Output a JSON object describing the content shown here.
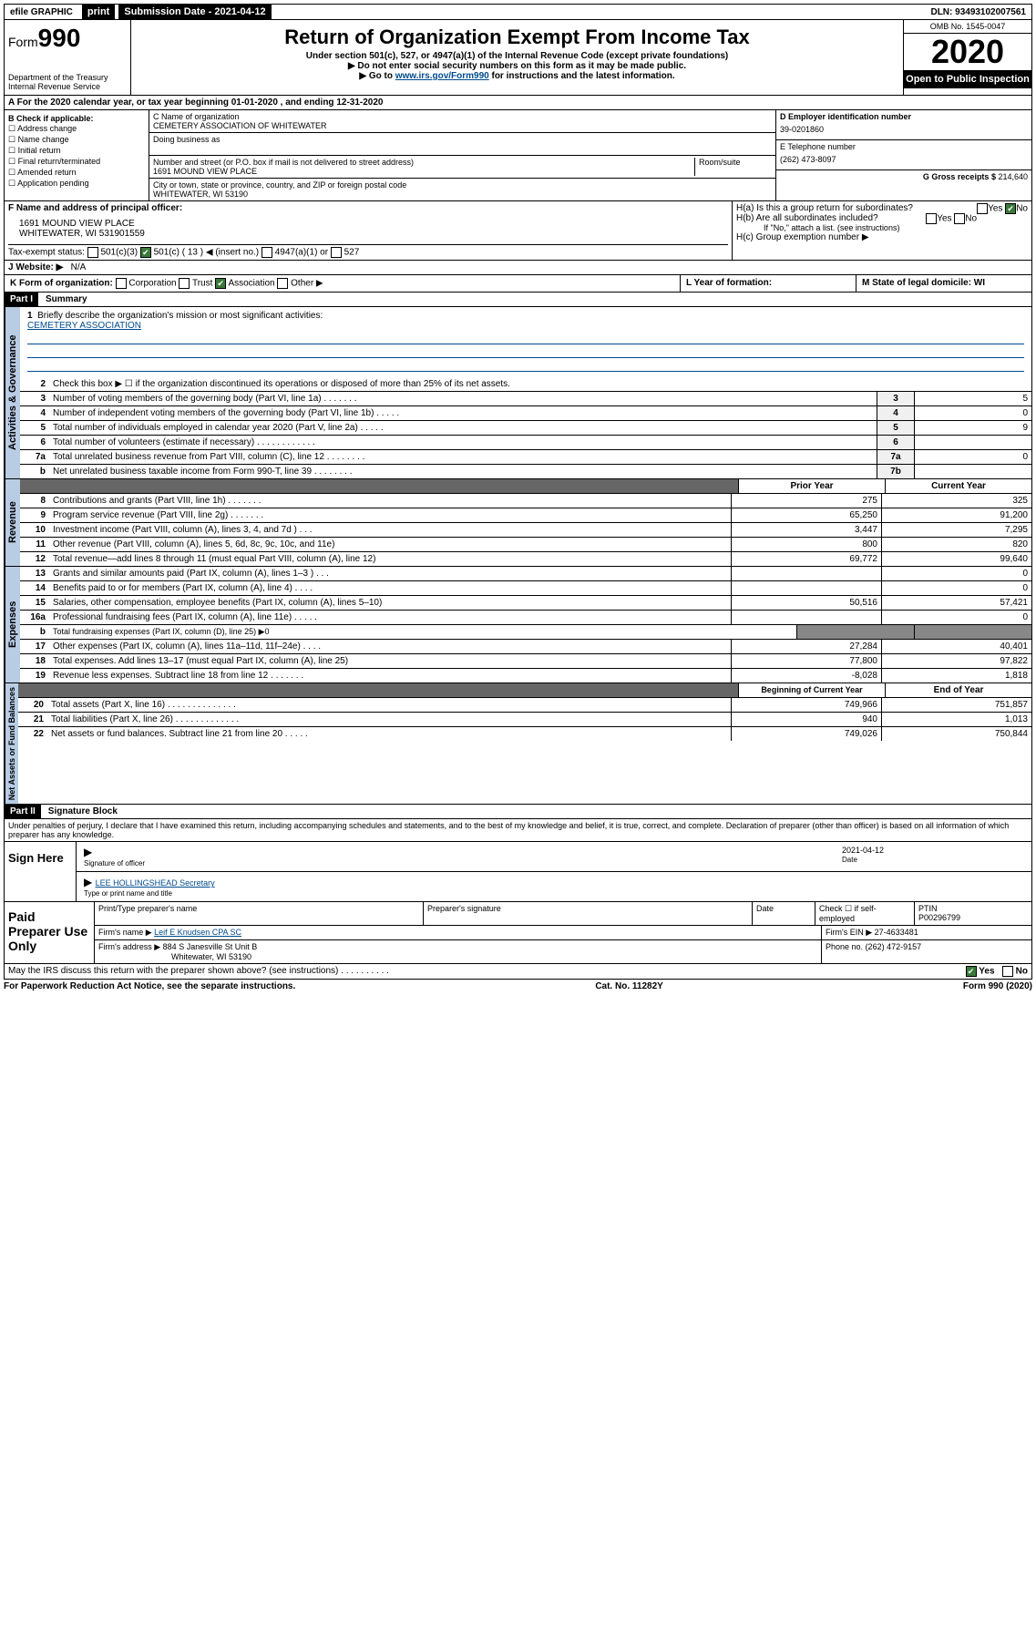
{
  "topbar": {
    "efile": "efile GRAPHIC",
    "print": "print",
    "subdate_label": "Submission Date - 2021-04-12",
    "dln": "DLN: 93493102007561"
  },
  "header": {
    "form_prefix": "Form",
    "form_number": "990",
    "dept1": "Department of the Treasury",
    "dept2": "Internal Revenue Service",
    "title": "Return of Organization Exempt From Income Tax",
    "subtitle": "Under section 501(c), 527, or 4947(a)(1) of the Internal Revenue Code (except private foundations)",
    "note1": "▶ Do not enter social security numbers on this form as it may be made public.",
    "note2_pre": "▶ Go to ",
    "note2_link": "www.irs.gov/Form990",
    "note2_post": " for instructions and the latest information.",
    "omb": "OMB No. 1545-0047",
    "year": "2020",
    "open": "Open to Public Inspection"
  },
  "row_a": "A For the 2020 calendar year, or tax year beginning 01-01-2020    , and ending 12-31-2020",
  "col_b": {
    "label": "B Check if applicable:",
    "items": [
      "Address change",
      "Name change",
      "Initial return",
      "Final return/terminated",
      "Amended return",
      "Application pending"
    ]
  },
  "col_c": {
    "name_label": "C Name of organization",
    "name": "CEMETERY ASSOCIATION OF WHITEWATER",
    "dba_label": "Doing business as",
    "addr_label": "Number and street (or P.O. box if mail is not delivered to street address)",
    "room_label": "Room/suite",
    "addr": "1691 MOUND VIEW PLACE",
    "city_label": "City or town, state or province, country, and ZIP or foreign postal code",
    "city": "WHITEWATER, WI  53190"
  },
  "col_d": {
    "ein_label": "D Employer identification number",
    "ein": "39-0201860",
    "tel_label": "E Telephone number",
    "tel": "(262) 473-8097",
    "gross_label": "G Gross receipts $ ",
    "gross": "214,640"
  },
  "section_f": {
    "label": "F Name and address of principal officer:",
    "addr1": "1691 MOUND VIEW PLACE",
    "addr2": "WHITEWATER, WI  531901559"
  },
  "section_h": {
    "ha": "H(a)  Is this a group return for subordinates?",
    "hb": "H(b)  Are all subordinates included?",
    "hb_note": "If \"No,\" attach a list. (see instructions)",
    "hc": "H(c)  Group exemption number ▶",
    "yes": "Yes",
    "no": "No"
  },
  "tax_exempt": {
    "label": "Tax-exempt status:",
    "o1": "501(c)(3)",
    "o2": "501(c) ( 13 ) ◀ (insert no.)",
    "o3": "4947(a)(1) or",
    "o4": "527"
  },
  "website": {
    "label": "J   Website: ▶",
    "val": "N/A"
  },
  "row_k": {
    "k": "K Form of organization:",
    "corp": "Corporation",
    "trust": "Trust",
    "assoc": "Association",
    "other": "Other ▶",
    "l": "L Year of formation:",
    "m": "M State of legal domicile: WI"
  },
  "part1": {
    "header": "Part I",
    "title": "Summary",
    "line1": "Briefly describe the organization's mission or most significant activities:",
    "mission": "CEMETERY ASSOCIATION",
    "line2": "Check this box ▶ ☐  if the organization discontinued its operations or disposed of more than 25% of its net assets.",
    "vert_gov": "Activities & Governance",
    "vert_rev": "Revenue",
    "vert_exp": "Expenses",
    "vert_net": "Net Assets or Fund Balances",
    "prior": "Prior Year",
    "current": "Current Year",
    "begin": "Beginning of Current Year",
    "end": "End of Year",
    "rows_gov": [
      {
        "n": "3",
        "d": "Number of voting members of the governing body (Part VI, line 1a)  .   .   .   .   .   .   .",
        "b": "3",
        "v": "5"
      },
      {
        "n": "4",
        "d": "Number of independent voting members of the governing body (Part VI, line 1b)  .   .   .   .   .",
        "b": "4",
        "v": "0"
      },
      {
        "n": "5",
        "d": "Total number of individuals employed in calendar year 2020 (Part V, line 2a)  .   .   .   .   .",
        "b": "5",
        "v": "9"
      },
      {
        "n": "6",
        "d": "Total number of volunteers (estimate if necessary)  .   .   .   .   .   .   .   .   .   .   .   .",
        "b": "6",
        "v": ""
      },
      {
        "n": "7a",
        "d": "Total unrelated business revenue from Part VIII, column (C), line 12  .   .   .   .   .   .   .   .",
        "b": "7a",
        "v": "0"
      },
      {
        "n": "b",
        "d": "Net unrelated business taxable income from Form 990-T, line 39   .   .   .   .   .   .   .   .",
        "b": "7b",
        "v": ""
      }
    ],
    "rows_rev": [
      {
        "n": "8",
        "d": "Contributions and grants (Part VIII, line 1h)  .   .   .   .   .   .   .",
        "p": "275",
        "c": "325"
      },
      {
        "n": "9",
        "d": "Program service revenue (Part VIII, line 2g)  .   .   .   .   .   .   .",
        "p": "65,250",
        "c": "91,200"
      },
      {
        "n": "10",
        "d": "Investment income (Part VIII, column (A), lines 3, 4, and 7d )  .   .   .",
        "p": "3,447",
        "c": "7,295"
      },
      {
        "n": "11",
        "d": "Other revenue (Part VIII, column (A), lines 5, 6d, 8c, 9c, 10c, and 11e)",
        "p": "800",
        "c": "820"
      },
      {
        "n": "12",
        "d": "Total revenue—add lines 8 through 11 (must equal Part VIII, column (A), line 12)",
        "p": "69,772",
        "c": "99,640"
      }
    ],
    "rows_exp": [
      {
        "n": "13",
        "d": "Grants and similar amounts paid (Part IX, column (A), lines 1–3 )  .   .   .",
        "p": "",
        "c": "0"
      },
      {
        "n": "14",
        "d": "Benefits paid to or for members (Part IX, column (A), line 4)  .   .   .   .",
        "p": "",
        "c": "0"
      },
      {
        "n": "15",
        "d": "Salaries, other compensation, employee benefits (Part IX, column (A), lines 5–10)",
        "p": "50,516",
        "c": "57,421"
      },
      {
        "n": "16a",
        "d": "Professional fundraising fees (Part IX, column (A), line 11e)  .   .   .   .   .",
        "p": "",
        "c": "0"
      },
      {
        "n": "b",
        "d": "Total fundraising expenses (Part IX, column (D), line 25) ▶0",
        "p": "",
        "c": "",
        "noval": true
      },
      {
        "n": "17",
        "d": "Other expenses (Part IX, column (A), lines 11a–11d, 11f–24e)  .   .   .   .",
        "p": "27,284",
        "c": "40,401"
      },
      {
        "n": "18",
        "d": "Total expenses. Add lines 13–17 (must equal Part IX, column (A), line 25)",
        "p": "77,800",
        "c": "97,822"
      },
      {
        "n": "19",
        "d": "Revenue less expenses. Subtract line 18 from line 12  .   .   .   .   .   .   .",
        "p": "-8,028",
        "c": "1,818"
      }
    ],
    "rows_net": [
      {
        "n": "20",
        "d": "Total assets (Part X, line 16)  .   .   .   .   .   .   .   .   .   .   .   .   .   .",
        "p": "749,966",
        "c": "751,857"
      },
      {
        "n": "21",
        "d": "Total liabilities (Part X, line 26)  .   .   .   .   .   .   .   .   .   .   .   .   .",
        "p": "940",
        "c": "1,013"
      },
      {
        "n": "22",
        "d": "Net assets or fund balances. Subtract line 21 from line 20  .   .   .   .   .",
        "p": "749,026",
        "c": "750,844"
      }
    ]
  },
  "part2": {
    "header": "Part II",
    "title": "Signature Block",
    "perjury": "Under penalties of perjury, I declare that I have examined this return, including accompanying schedules and statements, and to the best of my knowledge and belief, it is true, correct, and complete. Declaration of preparer (other than officer) is based on all information of which preparer has any knowledge.",
    "sign_here": "Sign Here",
    "sig_officer": "Signature of officer",
    "sig_date": "2021-04-12",
    "date_label": "Date",
    "name_title": "LEE HOLLINGSHEAD Secretary",
    "name_title_label": "Type or print name and title"
  },
  "preparer": {
    "label": "Paid Preparer Use Only",
    "h1": "Print/Type preparer's name",
    "h2": "Preparer's signature",
    "h3": "Date",
    "h4_a": "Check ☐ if self-employed",
    "h4_b": "PTIN",
    "ptin": "P00296799",
    "firm_label": "Firm's name    ▶",
    "firm": "Leif E Knudsen CPA SC",
    "ein_label": "Firm's EIN ▶",
    "ein": "27-4633481",
    "addr_label": "Firm's address ▶",
    "addr1": "884 S Janesville St Unit B",
    "addr2": "Whitewater, WI  53190",
    "phone_label": "Phone no.",
    "phone": "(262) 472-9157"
  },
  "discuss": {
    "q": "May the IRS discuss this return with the preparer shown above? (see instructions)  .   .   .   .   .   .   .   .   .   .",
    "yes": "Yes",
    "no": "No"
  },
  "footer": {
    "left": "For Paperwork Reduction Act Notice, see the separate instructions.",
    "mid": "Cat. No. 11282Y",
    "right": "Form 990 (2020)"
  }
}
